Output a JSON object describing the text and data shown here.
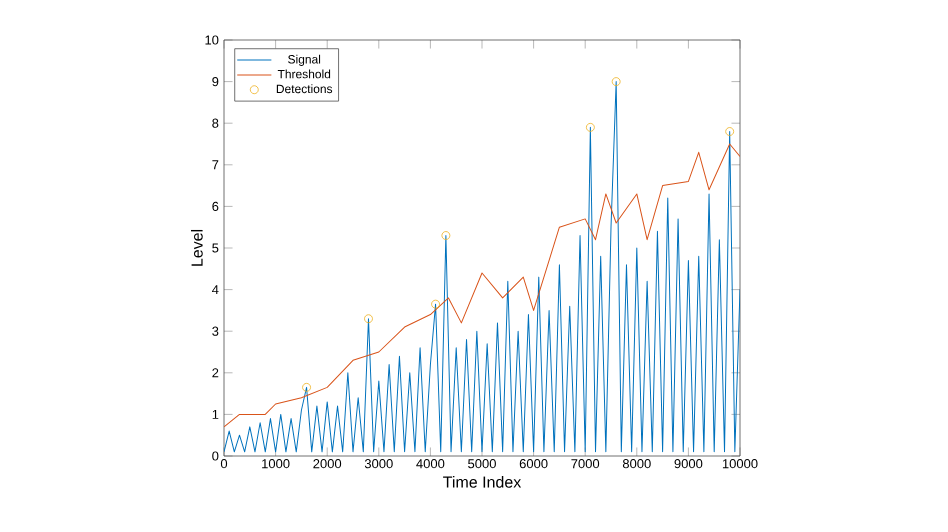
{
  "chart_data": {
    "type": "line",
    "xlabel": "Time Index",
    "ylabel": "Level",
    "xlim": [
      0,
      10000
    ],
    "ylim": [
      0,
      10
    ],
    "xticks": [
      0,
      1000,
      2000,
      3000,
      4000,
      5000,
      6000,
      7000,
      8000,
      9000,
      10000
    ],
    "yticks": [
      0,
      1,
      2,
      3,
      4,
      5,
      6,
      7,
      8,
      9,
      10
    ],
    "legend": "top left",
    "grid": false,
    "series": [
      {
        "name": "Signal",
        "color": "#0072bd",
        "marker": "none",
        "x": [
          0,
          100,
          200,
          300,
          400,
          500,
          600,
          700,
          800,
          900,
          1000,
          1100,
          1200,
          1300,
          1400,
          1500,
          1600,
          1700,
          1800,
          1900,
          2000,
          2100,
          2200,
          2300,
          2400,
          2500,
          2600,
          2700,
          2800,
          2900,
          3000,
          3100,
          3200,
          3300,
          3400,
          3500,
          3600,
          3700,
          3800,
          3900,
          4000,
          4100,
          4200,
          4300,
          4400,
          4500,
          4600,
          4700,
          4800,
          4900,
          5000,
          5100,
          5200,
          5300,
          5400,
          5500,
          5600,
          5700,
          5800,
          5900,
          6000,
          6100,
          6200,
          6300,
          6400,
          6500,
          6600,
          6700,
          6800,
          6900,
          7000,
          7100,
          7200,
          7300,
          7400,
          7500,
          7600,
          7700,
          7800,
          7900,
          8000,
          8100,
          8200,
          8300,
          8400,
          8500,
          8600,
          8700,
          8800,
          8900,
          9000,
          9100,
          9200,
          9300,
          9400,
          9500,
          9600,
          9700,
          9800,
          9900,
          10000
        ],
        "values": [
          0.1,
          0.6,
          0.1,
          0.5,
          0.1,
          0.7,
          0.1,
          0.8,
          0.1,
          0.9,
          0.1,
          1.0,
          0.1,
          0.9,
          0.1,
          1.1,
          1.65,
          0.1,
          1.2,
          0.1,
          1.3,
          0.1,
          1.2,
          0.1,
          2.0,
          0.1,
          1.4,
          0.1,
          3.3,
          0.1,
          1.8,
          0.1,
          2.2,
          0.1,
          2.4,
          0.1,
          2.0,
          0.1,
          2.6,
          0.1,
          2.2,
          3.65,
          0.1,
          5.3,
          0.1,
          2.6,
          0.1,
          2.8,
          0.1,
          3.0,
          0.1,
          2.7,
          0.1,
          3.2,
          0.1,
          4.2,
          0.1,
          3.0,
          0.1,
          3.4,
          0.1,
          4.3,
          0.1,
          3.5,
          0.1,
          4.6,
          0.1,
          3.6,
          0.1,
          5.3,
          0.1,
          7.9,
          0.1,
          4.8,
          0.1,
          5.5,
          9.0,
          0.1,
          4.6,
          0.1,
          5.0,
          0.1,
          4.2,
          0.1,
          5.4,
          0.1,
          6.2,
          0.1,
          5.7,
          0.1,
          4.7,
          0.1,
          4.8,
          0.1,
          6.3,
          0.1,
          5.2,
          0.1,
          7.8,
          0.1,
          4.0
        ]
      },
      {
        "name": "Threshold",
        "color": "#d95319",
        "marker": "none",
        "x": [
          0,
          300,
          800,
          1000,
          1500,
          2000,
          2500,
          3000,
          3500,
          4000,
          4350,
          4600,
          5000,
          5400,
          5800,
          6000,
          6500,
          7000,
          7200,
          7400,
          7600,
          8000,
          8200,
          8500,
          9000,
          9200,
          9400,
          9800,
          10000
        ],
        "values": [
          0.7,
          1.0,
          1.0,
          1.25,
          1.4,
          1.65,
          2.3,
          2.5,
          3.1,
          3.4,
          3.8,
          3.2,
          4.4,
          3.8,
          4.3,
          3.5,
          5.5,
          5.7,
          5.2,
          6.3,
          5.6,
          6.3,
          5.2,
          6.5,
          6.6,
          7.3,
          6.4,
          7.5,
          7.2
        ]
      },
      {
        "name": "Detections",
        "type": "scatter",
        "color": "#edb120",
        "marker": "circle",
        "x": [
          1600,
          2800,
          4100,
          4300,
          7100,
          7600,
          9800
        ],
        "values": [
          1.65,
          3.3,
          3.65,
          5.3,
          7.9,
          9.0,
          7.8
        ]
      }
    ]
  }
}
